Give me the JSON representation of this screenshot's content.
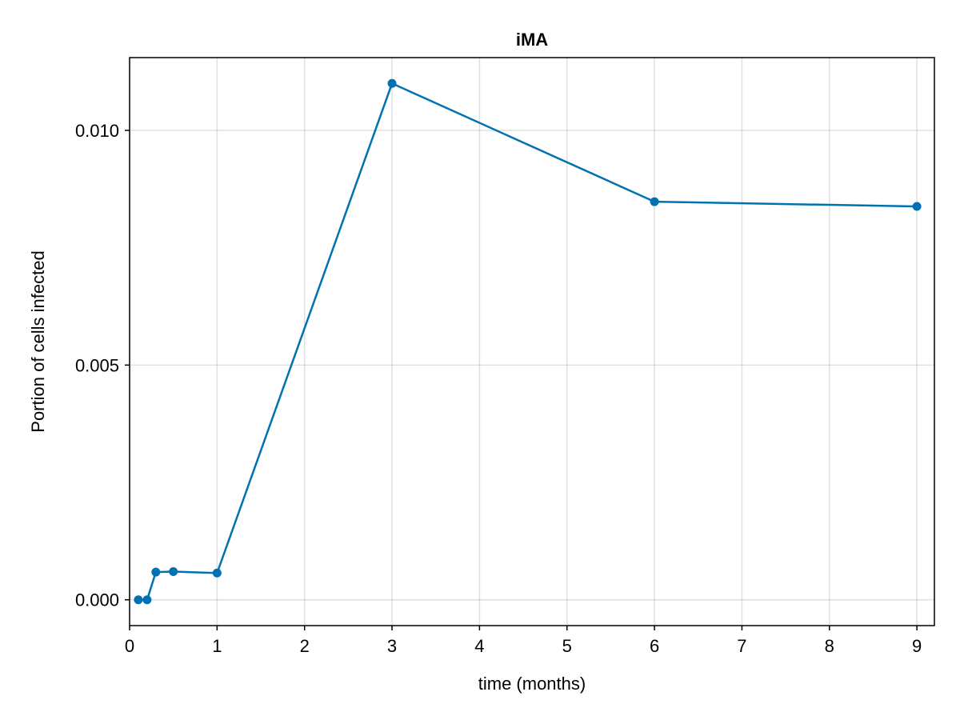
{
  "chart_data": {
    "type": "line",
    "title": "iMA",
    "xlabel": "time (months)",
    "ylabel": "Portion of cells infected",
    "xlim": [
      0,
      9.2
    ],
    "ylim": [
      -0.00055,
      0.01155
    ],
    "xticks": [
      0,
      1,
      2,
      3,
      4,
      5,
      6,
      7,
      8,
      9
    ],
    "xtick_labels": [
      "0",
      "1",
      "2",
      "3",
      "4",
      "5",
      "6",
      "7",
      "8",
      "9"
    ],
    "yticks": [
      0.0,
      0.005,
      0.01
    ],
    "ytick_labels": [
      "0.000",
      "0.005",
      "0.010"
    ],
    "grid": true,
    "series": [
      {
        "color": "#0072b2",
        "x": [
          0.1,
          0.2,
          0.3,
          0.5,
          1,
          3,
          6,
          9
        ],
        "y": [
          0.0,
          0.0,
          0.00059,
          0.0006,
          0.00057,
          0.011,
          0.00848,
          0.00838
        ]
      }
    ]
  }
}
